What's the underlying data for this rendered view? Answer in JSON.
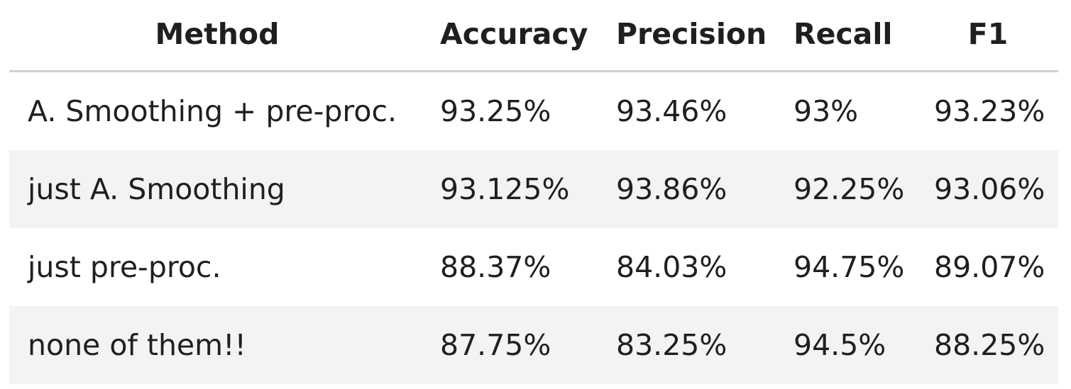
{
  "table": {
    "headers": {
      "method": "Method",
      "accuracy": "Accuracy",
      "precision": "Precision",
      "recall": "Recall",
      "f1": "F1"
    },
    "rows": [
      {
        "method": "A. Smoothing + pre-proc.",
        "accuracy": "93.25%",
        "precision": "93.46%",
        "recall": "93%",
        "f1": "93.23%"
      },
      {
        "method": "just A. Smoothing",
        "accuracy": "93.125%",
        "precision": "93.86%",
        "recall": "92.25%",
        "f1": "93.06%"
      },
      {
        "method": "just pre-proc.",
        "accuracy": "88.37%",
        "precision": "84.03%",
        "recall": "94.75%",
        "f1": "89.07%"
      },
      {
        "method": "none of them!!",
        "accuracy": "87.75%",
        "precision": "83.25%",
        "recall": "94.5%",
        "f1": "88.25%"
      }
    ]
  },
  "colors": {
    "row_shade": "#f3f3f3",
    "header_rule": "#cfcfcf",
    "text": "#1f1f1f"
  }
}
